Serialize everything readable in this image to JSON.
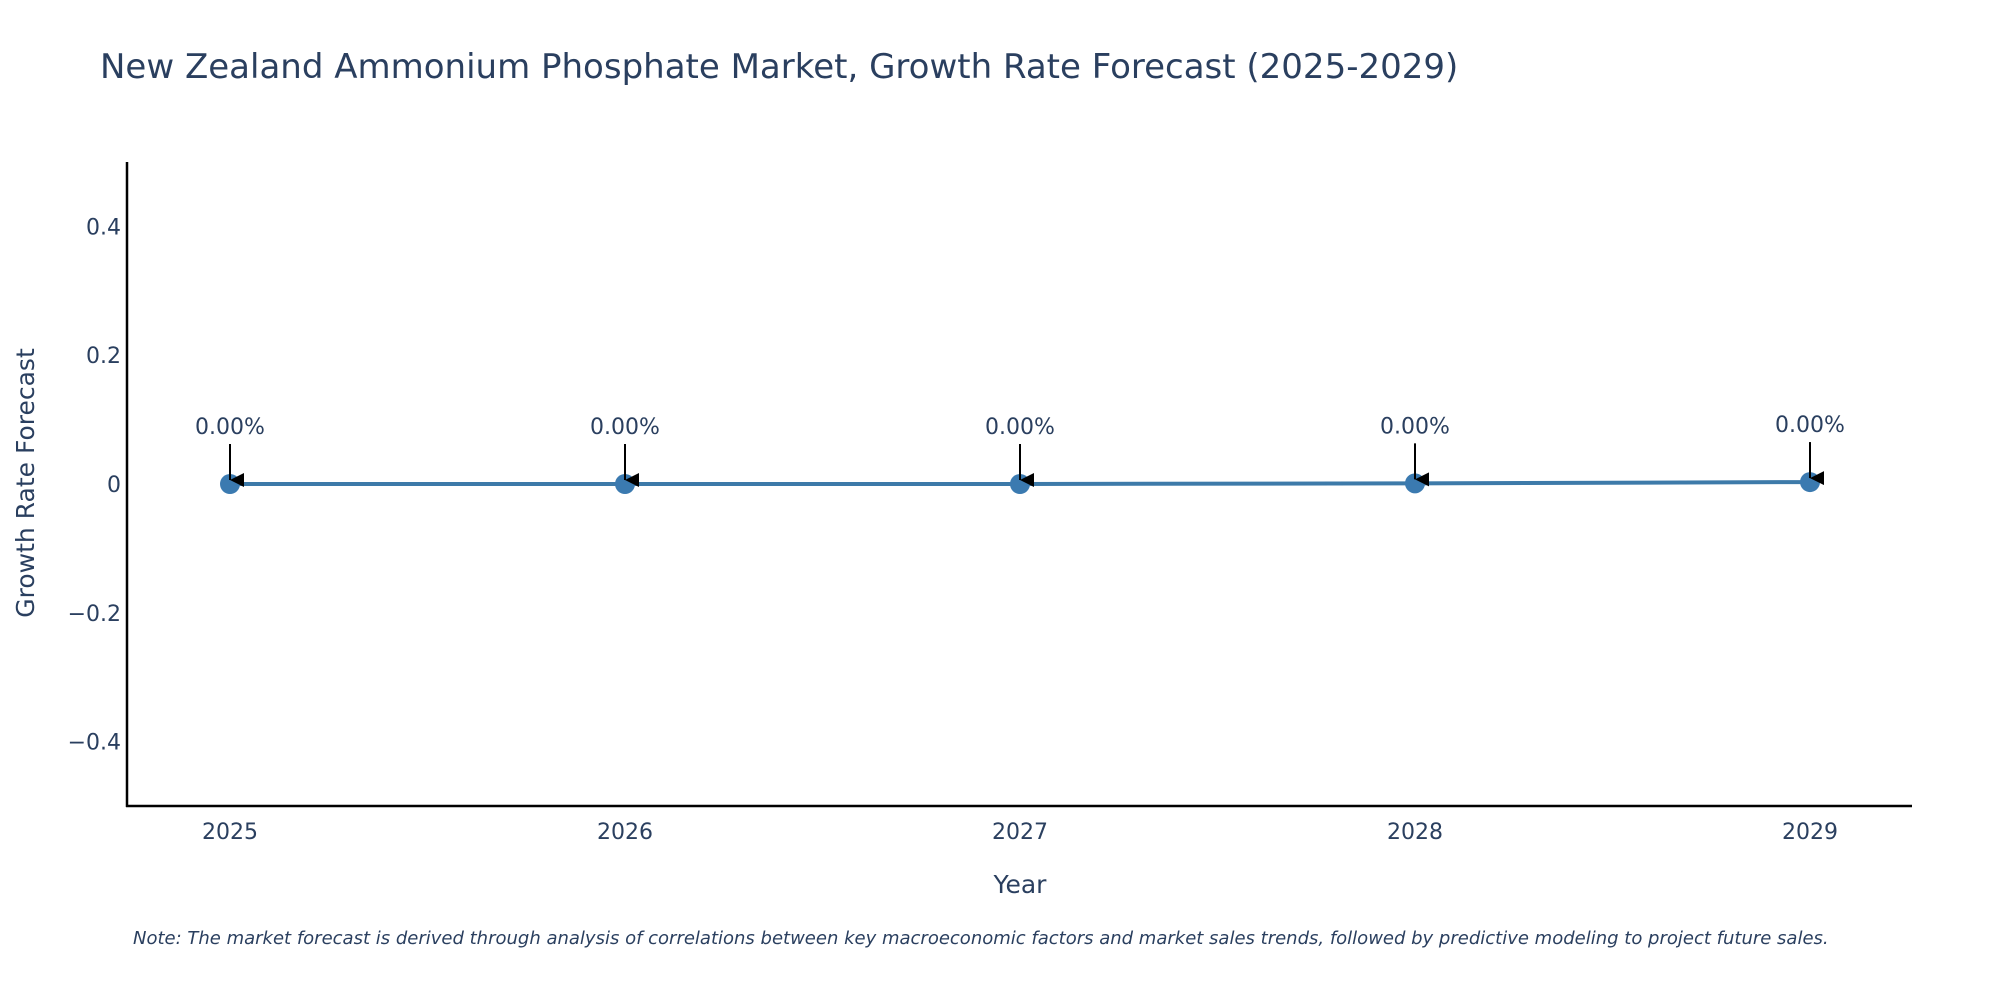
{
  "chart_data": {
    "type": "line",
    "title": "New Zealand Ammonium Phosphate Market, Growth Rate Forecast (2025-2029)",
    "xlabel": "Year",
    "ylabel": "Growth Rate Forecast",
    "categories": [
      "2025",
      "2026",
      "2027",
      "2028",
      "2029"
    ],
    "series": [
      {
        "name": "Growth Rate Forecast",
        "values": [
          0.0,
          0.0,
          0.0,
          0.001,
          0.003
        ],
        "data_labels": [
          "0.00%",
          "0.00%",
          "0.00%",
          "0.00%",
          "0.00%"
        ]
      }
    ],
    "ylim": [
      -0.5,
      0.5
    ],
    "y_ticks": [
      0.4,
      0.2,
      0,
      -0.2,
      -0.4
    ],
    "y_tick_labels": [
      "0.4",
      "0.2",
      "0",
      "−0.2",
      "−0.4"
    ],
    "grid": false,
    "legend": "none",
    "note": "Note: The market forecast is derived through analysis of correlations between key macroeconomic factors and market sales trends, followed by predictive modeling to project future sales.",
    "colors": {
      "line": "#3d7aa9",
      "marker": "#3b7ab0",
      "text": "#2a3f5f",
      "axis": "#000000"
    }
  }
}
